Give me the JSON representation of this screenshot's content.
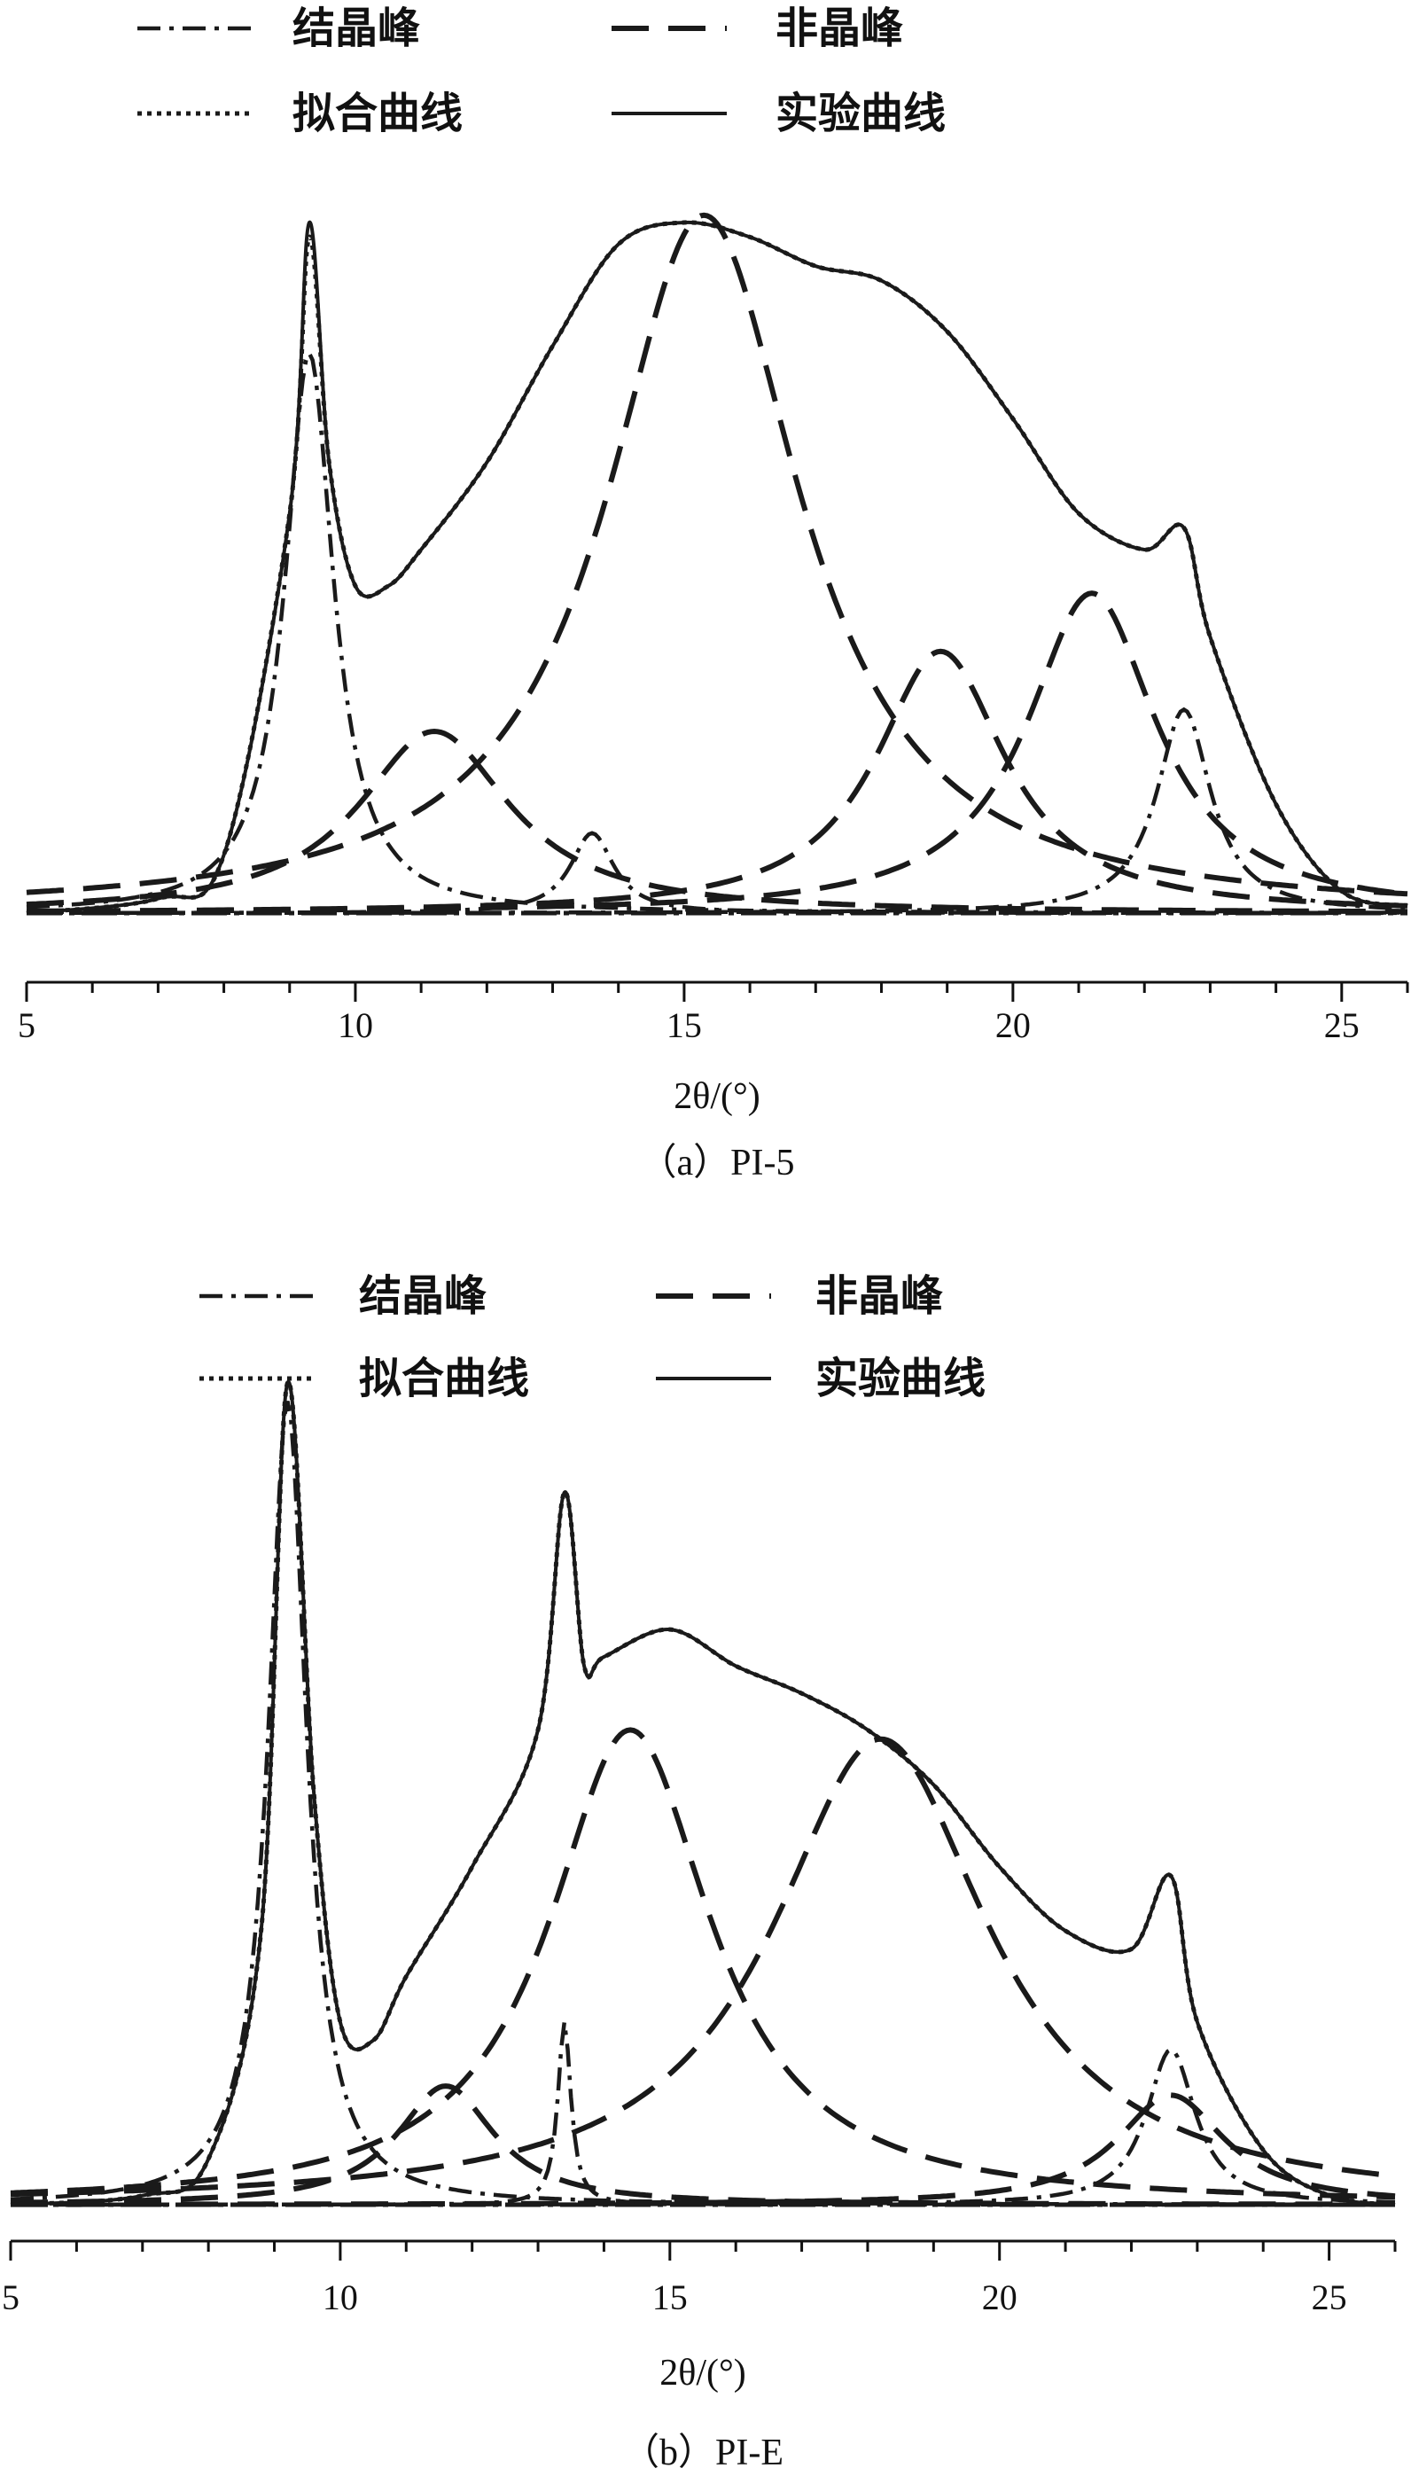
{
  "chart_data": [
    {
      "type": "line",
      "title": "（a）PI-5",
      "xlabel": "2θ/(°)",
      "ylabel": "",
      "xlim": [
        5,
        26
      ],
      "xticks": [
        5,
        10,
        15,
        20,
        25
      ],
      "y_axis_shown": false,
      "grid": false,
      "legend_position": "top",
      "legend": [
        {
          "name": "结晶峰",
          "style": "dashdot",
          "color": "#1a1a1a"
        },
        {
          "name": "非晶峰",
          "style": "dashed",
          "color": "#1a1a1a"
        },
        {
          "name": "拟合曲线",
          "style": "dotted",
          "color": "#1a1a1a"
        },
        {
          "name": "实验曲线",
          "style": "solid",
          "color": "#1a1a1a"
        }
      ],
      "series": [
        {
          "name": "结晶峰",
          "style": "dashdot",
          "component_peaks": [
            {
              "center": 9.3,
              "height": 0.77,
              "width": 0.45
            },
            {
              "center": 13.6,
              "height": 0.11,
              "width": 0.4
            },
            {
              "center": 22.6,
              "height": 0.28,
              "width": 0.5
            }
          ]
        },
        {
          "name": "非晶峰",
          "style": "dashed",
          "component_peaks": [
            {
              "center": 11.2,
              "height": 0.25,
              "width": 1.4
            },
            {
              "center": 15.3,
              "height": 0.96,
              "width": 1.8
            },
            {
              "center": 18.9,
              "height": 0.36,
              "width": 1.2
            },
            {
              "center": 21.2,
              "height": 0.44,
              "width": 1.2
            }
          ]
        },
        {
          "name": "拟合曲线",
          "style": "dotted",
          "x": [
            5,
            7,
            8,
            9,
            9.3,
            9.6,
            10,
            10.5,
            11,
            12,
            13,
            14,
            15,
            16,
            17,
            18,
            19,
            20,
            21,
            22,
            22.6,
            23,
            24,
            25,
            26
          ],
          "y": [
            0,
            0.02,
            0.08,
            0.55,
            0.93,
            0.62,
            0.45,
            0.45,
            0.5,
            0.62,
            0.78,
            0.92,
            0.95,
            0.93,
            0.89,
            0.87,
            0.8,
            0.68,
            0.55,
            0.5,
            0.53,
            0.38,
            0.15,
            0.03,
            0.01
          ]
        },
        {
          "name": "实验曲线",
          "style": "solid",
          "x": [
            5,
            7,
            8,
            9,
            9.3,
            9.6,
            10,
            10.5,
            11,
            12,
            13,
            14,
            15,
            16,
            17,
            18,
            19,
            20,
            21,
            22,
            22.6,
            23,
            24,
            25,
            26
          ],
          "y": [
            0,
            0.02,
            0.08,
            0.55,
            0.95,
            0.62,
            0.45,
            0.45,
            0.5,
            0.62,
            0.78,
            0.92,
            0.95,
            0.93,
            0.89,
            0.87,
            0.8,
            0.68,
            0.55,
            0.5,
            0.53,
            0.38,
            0.15,
            0.03,
            0.01
          ]
        }
      ]
    },
    {
      "type": "line",
      "title": "（b）PI-E",
      "xlabel": "2θ/(°)",
      "ylabel": "",
      "xlim": [
        5,
        26
      ],
      "xticks": [
        5,
        10,
        15,
        20,
        25
      ],
      "y_axis_shown": false,
      "grid": false,
      "legend_position": "top",
      "legend": [
        {
          "name": "结晶峰",
          "style": "dashdot",
          "color": "#1a1a1a"
        },
        {
          "name": "非晶峰",
          "style": "dashed",
          "color": "#1a1a1a"
        },
        {
          "name": "拟合曲线",
          "style": "dotted",
          "color": "#1a1a1a"
        },
        {
          "name": "实验曲线",
          "style": "solid",
          "color": "#1a1a1a"
        }
      ],
      "series": [
        {
          "name": "结晶峰",
          "style": "dashdot",
          "component_peaks": [
            {
              "center": 9.2,
              "height": 0.88,
              "width": 0.35
            },
            {
              "center": 13.4,
              "height": 0.2,
              "width": 0.12
            },
            {
              "center": 22.6,
              "height": 0.17,
              "width": 0.45
            }
          ]
        },
        {
          "name": "非晶峰",
          "style": "dashed",
          "component_peaks": [
            {
              "center": 11.6,
              "height": 0.13,
              "width": 0.9
            },
            {
              "center": 14.4,
              "height": 0.52,
              "width": 1.5
            },
            {
              "center": 18.2,
              "height": 0.51,
              "width": 2.0
            },
            {
              "center": 22.6,
              "height": 0.12,
              "width": 1.0
            }
          ]
        },
        {
          "name": "拟合曲线",
          "style": "dotted",
          "x": [
            5,
            7,
            8,
            8.8,
            9.2,
            9.6,
            10,
            10.5,
            11,
            12,
            13,
            13.4,
            13.7,
            14,
            15,
            16,
            17,
            18,
            19,
            20,
            21,
            22,
            22.6,
            23,
            24,
            25,
            26
          ],
          "y": [
            0,
            0.01,
            0.05,
            0.3,
            0.9,
            0.45,
            0.2,
            0.18,
            0.25,
            0.37,
            0.52,
            0.78,
            0.59,
            0.6,
            0.63,
            0.59,
            0.56,
            0.52,
            0.46,
            0.37,
            0.3,
            0.28,
            0.36,
            0.2,
            0.06,
            0.01,
            0
          ]
        },
        {
          "name": "实验曲线",
          "style": "solid",
          "x": [
            5,
            7,
            8,
            8.8,
            9.2,
            9.6,
            10,
            10.5,
            11,
            12,
            13,
            13.4,
            13.7,
            14,
            15,
            16,
            17,
            18,
            19,
            20,
            21,
            22,
            22.6,
            23,
            24,
            25,
            26
          ],
          "y": [
            0,
            0.01,
            0.05,
            0.3,
            0.9,
            0.45,
            0.2,
            0.18,
            0.25,
            0.37,
            0.52,
            0.78,
            0.59,
            0.6,
            0.63,
            0.59,
            0.56,
            0.52,
            0.46,
            0.37,
            0.3,
            0.28,
            0.36,
            0.2,
            0.06,
            0.01,
            0
          ]
        }
      ]
    }
  ]
}
